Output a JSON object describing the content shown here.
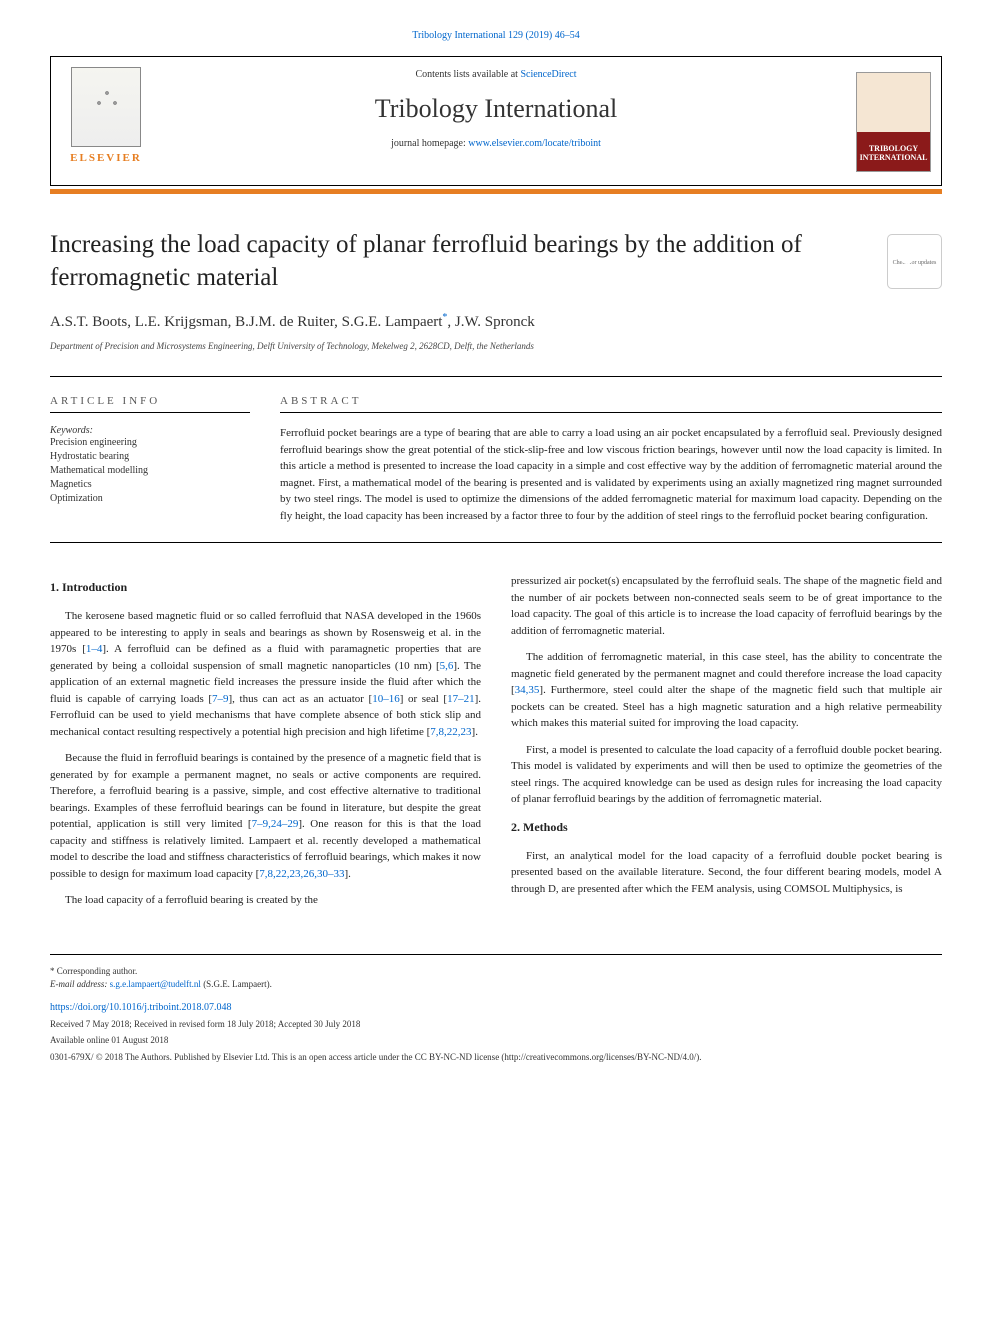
{
  "top_link": "Tribology International 129 (2019) 46–54",
  "header": {
    "contents_prefix": "Contents lists available at ",
    "contents_link": "ScienceDirect",
    "journal_name": "Tribology International",
    "homepage_prefix": "journal homepage: ",
    "homepage_link": "www.elsevier.com/locate/triboint",
    "elsevier_label": "ELSEVIER",
    "cover_text_line1": "TRIBOLOGY",
    "cover_text_line2": "INTERNATIONAL"
  },
  "check_updates_label": "Check for updates",
  "title": "Increasing the load capacity of planar ferrofluid bearings by the addition of ferromagnetic material",
  "authors": "A.S.T. Boots, L.E. Krijgsman, B.J.M. de Ruiter, S.G.E. Lampaert",
  "author_last": ", J.W. Spronck",
  "corr_marker": "*",
  "affiliation": "Department of Precision and Microsystems Engineering, Delft University of Technology, Mekelweg 2, 2628CD, Delft, the Netherlands",
  "info_heading": "ARTICLE INFO",
  "abstract_heading": "ABSTRACT",
  "keywords_label": "Keywords:",
  "keywords": [
    "Precision engineering",
    "Hydrostatic bearing",
    "Mathematical modelling",
    "Magnetics",
    "Optimization"
  ],
  "abstract": "Ferrofluid pocket bearings are a type of bearing that are able to carry a load using an air pocket encapsulated by a ferrofluid seal. Previously designed ferrofluid bearings show the great potential of the stick-slip-free and low viscous friction bearings, however until now the load capacity is limited. In this article a method is presented to increase the load capacity in a simple and cost effective way by the addition of ferromagnetic material around the magnet. First, a mathematical model of the bearing is presented and is validated by experiments using an axially magnetized ring magnet surrounded by two steel rings. The model is used to optimize the dimensions of the added ferromagnetic material for maximum load capacity. Depending on the fly height, the load capacity has been increased by a factor three to four by the addition of steel rings to the ferrofluid pocket bearing configuration.",
  "sections": {
    "intro_heading": "1. Introduction",
    "methods_heading": "2. Methods",
    "col1": {
      "p1a": "The kerosene based magnetic fluid or so called ferrofluid that NASA developed in the 1960s appeared to be interesting to apply in seals and bearings as shown by Rosensweig et al. in the 1970s [",
      "p1_ref1": "1–4",
      "p1b": "]. A ferrofluid can be defined as a fluid with paramagnetic properties that are generated by being a colloidal suspension of small magnetic nanoparticles (10 nm) [",
      "p1_ref2": "5,6",
      "p1c": "]. The application of an external magnetic field increases the pressure inside the fluid after which the fluid is capable of carrying loads [",
      "p1_ref3": "7–9",
      "p1d": "], thus can act as an actuator [",
      "p1_ref4": "10–16",
      "p1e": "] or seal [",
      "p1_ref5": "17–21",
      "p1f": "]. Ferrofluid can be used to yield mechanisms that have complete absence of both stick slip and mechanical contact resulting respectively a potential high precision and high lifetime [",
      "p1_ref6": "7,8,22,23",
      "p1g": "].",
      "p2a": "Because the fluid in ferrofluid bearings is contained by the presence of a magnetic field that is generated by for example a permanent magnet, no seals or active components are required. Therefore, a ferrofluid bearing is a passive, simple, and cost effective alternative to traditional bearings. Examples of these ferrofluid bearings can be found in literature, but despite the great potential, application is still very limited [",
      "p2_ref1": "7–9,24–29",
      "p2b": "]. One reason for this is that the load capacity and stiffness is relatively limited. Lampaert et al. recently developed a mathematical model to describe the load and stiffness characteristics of ferrofluid bearings, which makes it now possible to design for maximum load capacity [",
      "p2_ref2": "7,8,22,23,26,30–33",
      "p2c": "].",
      "p3": "The load capacity of a ferrofluid bearing is created by the"
    },
    "col2": {
      "p1": "pressurized air pocket(s) encapsulated by the ferrofluid seals. The shape of the magnetic field and the number of air pockets between non-connected seals seem to be of great importance to the load capacity. The goal of this article is to increase the load capacity of ferrofluid bearings by the addition of ferromagnetic material.",
      "p2a": "The addition of ferromagnetic material, in this case steel, has the ability to concentrate the magnetic field generated by the permanent magnet and could therefore increase the load capacity [",
      "p2_ref1": "34,35",
      "p2b": "]. Furthermore, steel could alter the shape of the magnetic field such that multiple air pockets can be created. Steel has a high magnetic saturation and a high relative permeability which makes this material suited for improving the load capacity.",
      "p3": "First, a model is presented to calculate the load capacity of a ferrofluid double pocket bearing. This model is validated by experiments and will then be used to optimize the geometries of the steel rings. The acquired knowledge can be used as design rules for increasing the load capacity of planar ferrofluid bearings by the addition of ferromagnetic material.",
      "p4": "First, an analytical model for the load capacity of a ferrofluid double pocket bearing is presented based on the available literature. Second, the four different bearing models, model A through D, are presented after which the FEM analysis, using COMSOL Multiphysics, is"
    }
  },
  "footer": {
    "corr_label": "* Corresponding author.",
    "email_label": "E-mail address: ",
    "email": "s.g.e.lampaert@tudelft.nl",
    "email_suffix": " (S.G.E. Lampaert).",
    "doi": "https://doi.org/10.1016/j.triboint.2018.07.048",
    "dates": "Received 7 May 2018; Received in revised form 18 July 2018; Accepted 30 July 2018",
    "available": "Available online 01 August 2018",
    "copyright": "0301-679X/ © 2018 The Authors. Published by Elsevier Ltd. This is an open access article under the CC BY-NC-ND license (http://creativecommons.org/licenses/BY-NC-ND/4.0/)."
  },
  "colors": {
    "link": "#0066cc",
    "orange": "#e67e22",
    "text": "#222222"
  }
}
